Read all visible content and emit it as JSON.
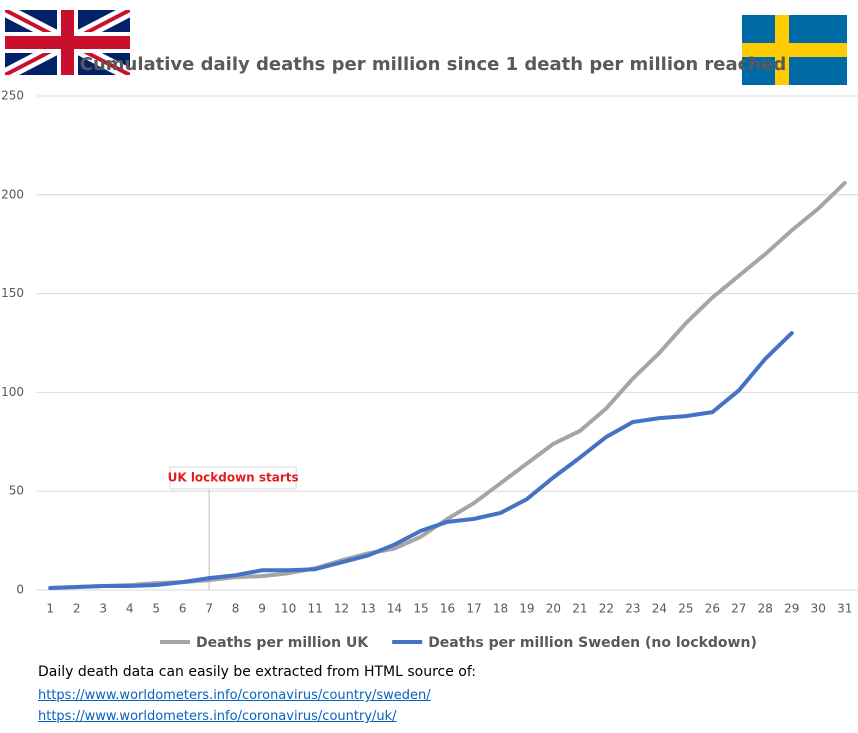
{
  "chart_data": {
    "type": "line",
    "title": "Cumulative daily deaths per million since 1 death per million reached",
    "categories": [
      1,
      2,
      3,
      4,
      5,
      6,
      7,
      8,
      9,
      10,
      11,
      12,
      13,
      14,
      15,
      16,
      17,
      18,
      19,
      20,
      21,
      22,
      23,
      24,
      25,
      26,
      27,
      28,
      29,
      30,
      31
    ],
    "series": [
      {
        "name": "Deaths per million UK",
        "color": "#a5a5a5",
        "values": [
          1,
          1.5,
          2,
          2.5,
          3.5,
          4,
          5,
          6.5,
          7,
          8.5,
          11,
          15,
          18.5,
          21,
          27,
          36,
          44,
          54,
          64,
          74,
          80.5,
          92,
          107,
          120,
          135,
          148,
          159,
          170,
          182,
          193,
          206
        ]
      },
      {
        "name": "Deaths per million Sweden (no lockdown)",
        "color": "#4472c4",
        "values": [
          1,
          1.5,
          2,
          2,
          2.5,
          4,
          6,
          7.5,
          10,
          10,
          10.5,
          14,
          17.5,
          23,
          30,
          34.5,
          36,
          39,
          46,
          57,
          67,
          77.5,
          85,
          87,
          88,
          90,
          101,
          117,
          130,
          null,
          null
        ]
      }
    ],
    "ylim": [
      0,
      250
    ],
    "yticks": [
      0,
      50,
      100,
      150,
      200,
      250
    ],
    "grid": true,
    "legend": "bottom",
    "annotations": [
      {
        "text": "UK lockdown starts",
        "x": 7
      }
    ]
  },
  "footer": {
    "text": "Daily death data can easily be extracted from HTML source of:",
    "links": [
      "https://www.worldometers.info/coronavirus/country/sweden/",
      "https://www.worldometers.info/coronavirus/country/uk/"
    ]
  }
}
